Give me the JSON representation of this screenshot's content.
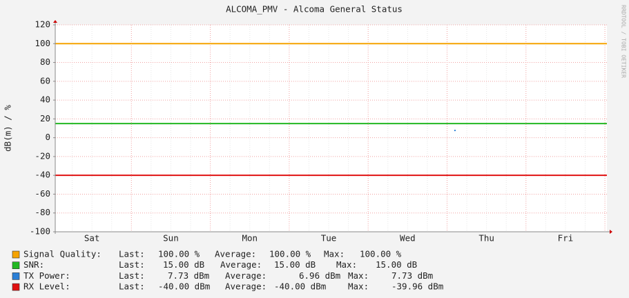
{
  "chart_data": {
    "type": "step",
    "title": "ALCOMA_PMV - Alcoma General Status",
    "ylabel": "dB(m) / %",
    "side_text": "RRDTOOL / TOBI OETIKER",
    "categories": [
      "Sat",
      "Sun",
      "Mon",
      "Tue",
      "Wed",
      "Thu",
      "Fri"
    ],
    "ylim": [
      -100,
      120
    ],
    "yticks": [
      -100,
      -80,
      -60,
      -40,
      -20,
      0,
      20,
      40,
      60,
      80,
      100,
      120
    ],
    "grid": true,
    "legend_labels": [
      "Last:",
      "Average:",
      "Max:"
    ],
    "series": [
      {
        "name": "Signal Quality:",
        "color": "#f5a300",
        "style": "line",
        "values": [
          100,
          100,
          100,
          100,
          100,
          100,
          100
        ],
        "last": "100.00 %",
        "average": "100.00 %",
        "max": "100.00 %"
      },
      {
        "name": "SNR:",
        "color": "#22b822",
        "style": "line",
        "values": [
          15,
          15,
          15,
          15,
          15,
          15,
          15
        ],
        "last": "15.00 dB",
        "average": "15.00 dB",
        "max": "15.00 dB"
      },
      {
        "name": "TX Power:",
        "color": "#2a7fd6",
        "style": "points",
        "values": [
          null,
          null,
          null,
          null,
          null,
          7.73,
          null
        ],
        "last": "7.73 dBm",
        "average": "6.96 dBm",
        "max": "7.73 dBm"
      },
      {
        "name": "RX Level:",
        "color": "#e01010",
        "style": "line",
        "values": [
          -40,
          -40,
          -40,
          -40,
          -40,
          -40,
          -40
        ],
        "last": "-40.00 dBm",
        "average": "-40.00 dBm",
        "max": "-39.96 dBm"
      }
    ]
  }
}
